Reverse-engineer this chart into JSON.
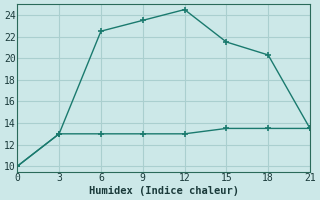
{
  "xlabel": "Humidex (Indice chaleur)",
  "ylabel": "",
  "background_color": "#cce8e8",
  "plot_bg_color": "#cce8e8",
  "grid_color": "#aacfcf",
  "line_color": "#1a7a6e",
  "xlim": [
    0,
    21
  ],
  "ylim": [
    9.5,
    25
  ],
  "xticks": [
    0,
    3,
    6,
    9,
    12,
    15,
    18,
    21
  ],
  "yticks": [
    10,
    12,
    14,
    16,
    18,
    20,
    22,
    24
  ],
  "line1_x": [
    0,
    3,
    6,
    9,
    12,
    15,
    18,
    21
  ],
  "line1_y": [
    10,
    13,
    22.5,
    23.5,
    24.5,
    21.5,
    20.3,
    13.5
  ],
  "line2_x": [
    0,
    3,
    6,
    9,
    12,
    15,
    18,
    21
  ],
  "line2_y": [
    10,
    13,
    13,
    13,
    13,
    13.5,
    13.5,
    13.5
  ],
  "tick_fontsize": 7,
  "xlabel_fontsize": 7.5
}
